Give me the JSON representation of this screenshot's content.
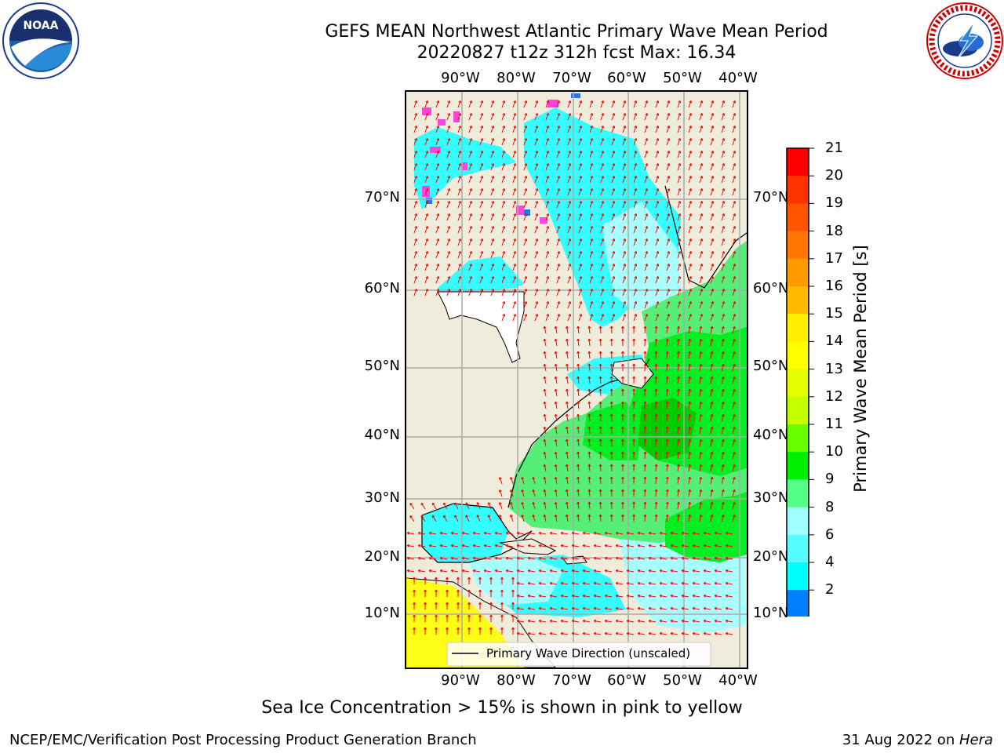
{
  "header": {
    "title": "GEFS MEAN Northwest Atlantic Primary Wave Mean Period",
    "subtitle": "20220827 t12z 312h fcst   Max: 16.34"
  },
  "logos": {
    "left": "noaa-logo",
    "right": "national-weather-service-logo"
  },
  "map": {
    "lon_labels": [
      "90°W",
      "80°W",
      "70°W",
      "60°W",
      "50°W",
      "40°W"
    ],
    "lat_labels": [
      "70°N",
      "60°N",
      "50°N",
      "40°N",
      "30°N",
      "20°N",
      "10°N"
    ],
    "legend": "Primary Wave Direction (unscaled)",
    "arrow_color": "#ff0000",
    "land_color": "#efecdc",
    "grid": true
  },
  "colorbar": {
    "label": "Primary Wave Mean Period [s]",
    "ticks": [
      "21",
      "20",
      "19",
      "18",
      "17",
      "16",
      "15",
      "14",
      "13",
      "12",
      "11",
      "10",
      "9",
      "8",
      "6",
      "4",
      "2"
    ],
    "colors": [
      "#ff0000",
      "#ff3300",
      "#ff5500",
      "#ff7700",
      "#ff9900",
      "#ffbb00",
      "#ffee00",
      "#ffff00",
      "#e4ff00",
      "#c4ff00",
      "#66ff00",
      "#00ee00",
      "#55ff88",
      "#a0ffff",
      "#55ffff",
      "#00ffff",
      "#0080ff"
    ],
    "under_color": "#0000ff"
  },
  "note": "Sea Ice Concentration > 15% is shown in pink to yellow",
  "footer": {
    "credit": "NCEP/EMC/Verification Post Processing Product Generation Branch",
    "date": "31 Aug 2022 on ",
    "host": "Hera"
  }
}
